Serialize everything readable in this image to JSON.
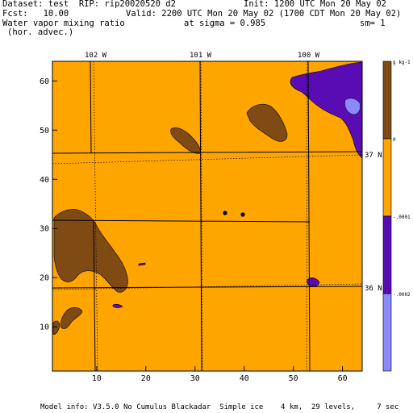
{
  "header": {
    "dataset": "Dataset: test  RIP: rip20020520 d2",
    "init": "Init: 1200 UTC Mon 20 May 02",
    "fcst": "Fcst:   10.00",
    "valid": "Valid: 2200 UTC Mon 20 May 02 (1700 CDT Mon 20 May 02)",
    "field": "Water vapor mixing ratio",
    "sigma": "at sigma = 0.985",
    "sm": "sm= 1",
    "advec": "(hor. advec.)"
  },
  "footer": "Model info: V3.5.0 No Cumulus Blackadar  Simple ice    4 km,  29 levels,     7 sec",
  "map": {
    "x_ticks": [
      10,
      20,
      30,
      40,
      50,
      60
    ],
    "y_ticks": [
      10,
      20,
      30,
      40,
      50,
      60
    ],
    "x_range": [
      1,
      64
    ],
    "y_range": [
      1,
      64
    ],
    "longitude_labels": [
      "102 W",
      "101 W",
      "100 W"
    ],
    "latitude_labels": [
      "37 N",
      "36 N"
    ]
  },
  "colorbar": {
    "unit_label": "g kg-1",
    "labels": [
      "0",
      "-.0001",
      "-.0002"
    ],
    "colors": [
      "#7f4a14",
      "#ffa500",
      "#5a0cb4",
      "#8a8afa"
    ]
  },
  "colors": {
    "background_field": "#ffa500",
    "positive": "#7f4a14",
    "negative": "#5a0cb4",
    "strong_negative": "#8a8afa"
  }
}
